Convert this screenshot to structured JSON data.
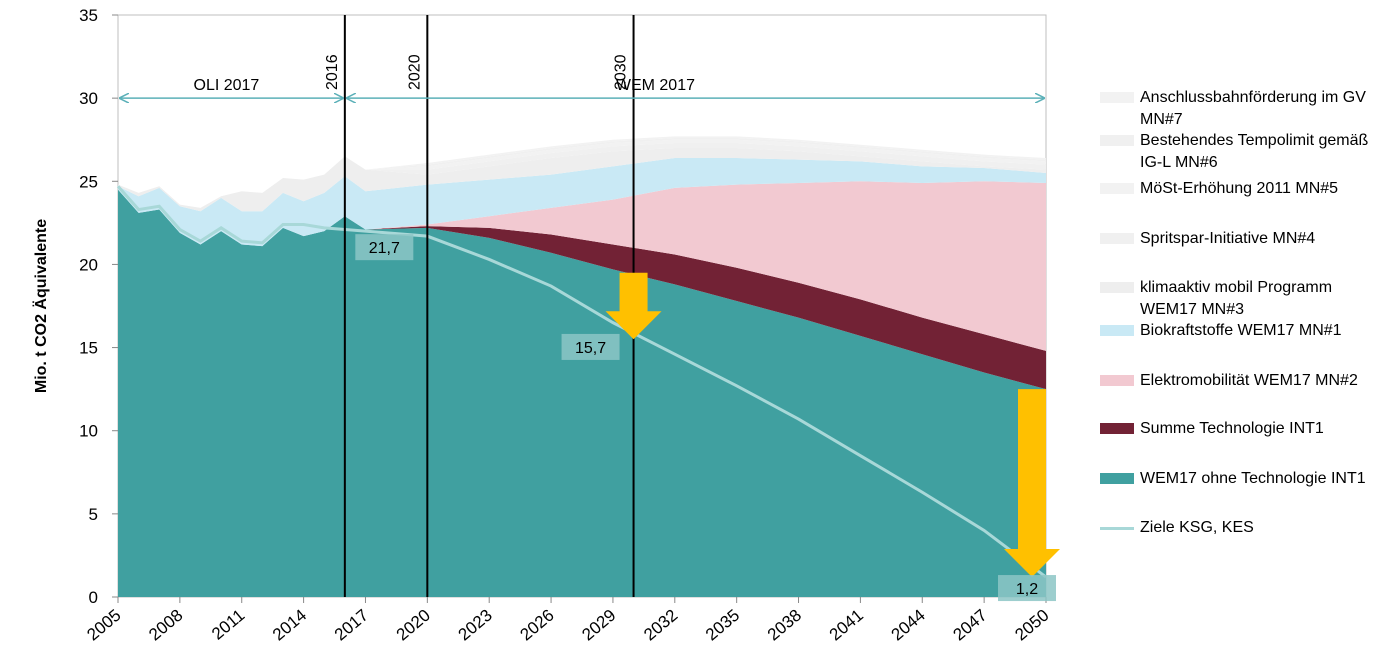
{
  "chart_data": {
    "type": "stacked_area",
    "y_label": "Mio. t CO2 Äquivalente",
    "x": [
      2005,
      2006,
      2007,
      2008,
      2009,
      2010,
      2011,
      2012,
      2013,
      2014,
      2015,
      2016,
      2017,
      2020,
      2023,
      2026,
      2029,
      2032,
      2035,
      2038,
      2041,
      2044,
      2047,
      2050
    ],
    "xlim": [
      2005,
      2050
    ],
    "xticks": [
      2005,
      2008,
      2011,
      2014,
      2017,
      2020,
      2023,
      2026,
      2029,
      2032,
      2035,
      2038,
      2041,
      2044,
      2047,
      2050
    ],
    "ylim": [
      0,
      35
    ],
    "yticks": [
      0,
      5,
      10,
      15,
      20,
      25,
      30,
      35
    ],
    "series": [
      {
        "name": "WEM17 ohne Technologie INT1",
        "color": "#40a0a0",
        "values": [
          24.5,
          23.1,
          23.3,
          21.9,
          21.2,
          22.0,
          21.2,
          21.1,
          22.2,
          21.7,
          22.0,
          22.9,
          22.1,
          22.2,
          21.6,
          20.7,
          19.7,
          18.8,
          17.8,
          16.8,
          15.7,
          14.6,
          13.5,
          12.5
        ]
      },
      {
        "name": "Summe Technologie INT1",
        "color": "#722235",
        "values": [
          0,
          0,
          0,
          0,
          0,
          0,
          0,
          0,
          0,
          0,
          0,
          0,
          0,
          0.1,
          0.6,
          1.1,
          1.5,
          1.8,
          2.0,
          2.1,
          2.2,
          2.2,
          2.3,
          2.3
        ]
      },
      {
        "name": "Elektromobilität WEM17 MN#2",
        "color": "#f2c9d1",
        "values": [
          0,
          0,
          0,
          0,
          0,
          0,
          0,
          0,
          0,
          0,
          0,
          0,
          0,
          0.1,
          0.7,
          1.6,
          2.7,
          4.0,
          5.0,
          6.0,
          7.1,
          8.1,
          9.2,
          10.1
        ]
      },
      {
        "name": "Biokraftstoffe WEM17 MN#1",
        "color": "#c9e9f5",
        "values": [
          0.2,
          1.0,
          1.3,
          1.6,
          2.0,
          2.0,
          2.0,
          2.1,
          2.1,
          2.1,
          2.3,
          2.4,
          2.3,
          2.4,
          2.2,
          2.0,
          2.0,
          1.8,
          1.6,
          1.4,
          1.2,
          1.0,
          0.8,
          0.6
        ]
      },
      {
        "name": "klimaaktiv mobil Programm WEM17 MN#3",
        "color": "#eeeeee",
        "values": [
          0.1,
          0.2,
          0.1,
          0.1,
          0.2,
          0.1,
          1.2,
          1.1,
          0.9,
          1.3,
          1.1,
          1.2,
          1.3,
          0.6,
          0.8,
          1.0,
          0.9,
          0.6,
          0.6,
          0.5,
          0.3,
          0.3,
          0.1,
          0.2
        ]
      },
      {
        "name": "Spritspar-Initiative MN#4",
        "color": "#f0f0f0",
        "values": [
          0,
          0,
          0,
          0,
          0,
          0,
          0,
          0,
          0,
          0,
          0,
          0,
          0,
          0.3,
          0.3,
          0.3,
          0.3,
          0.3,
          0.3,
          0.3,
          0.3,
          0.3,
          0.3,
          0.3
        ]
      },
      {
        "name": "MöSt-Erhöhung 2011 MN#5",
        "color": "#f2f2f2",
        "values": [
          0,
          0,
          0,
          0,
          0,
          0,
          0,
          0,
          0,
          0,
          0,
          0,
          0,
          0.2,
          0.2,
          0.2,
          0.2,
          0.2,
          0.2,
          0.2,
          0.2,
          0.2,
          0.2,
          0.2
        ]
      },
      {
        "name": "Bestehendes Tempolimit gemäß IG-L MN#6",
        "color": "#f0f0f0",
        "values": [
          0,
          0,
          0,
          0,
          0,
          0,
          0,
          0,
          0,
          0,
          0,
          0,
          0,
          0.1,
          0.1,
          0.1,
          0.1,
          0.1,
          0.1,
          0.1,
          0.1,
          0.1,
          0.1,
          0.1
        ]
      },
      {
        "name": "Anschlussbahnförderung im GV MN#7",
        "color": "#f2f2f2",
        "values": [
          0,
          0,
          0,
          0,
          0,
          0,
          0,
          0,
          0,
          0,
          0,
          0,
          0,
          0.1,
          0.1,
          0.1,
          0.1,
          0.1,
          0.1,
          0.1,
          0.1,
          0.1,
          0.1,
          0.1
        ]
      }
    ],
    "line": {
      "name": "Ziele KSG, KES",
      "color": "#a8d8d8",
      "values": [
        24.7,
        23.3,
        23.5,
        22.1,
        21.4,
        22.2,
        21.4,
        21.3,
        22.4,
        22.4,
        22.2,
        22.1,
        22.0,
        21.7,
        20.3,
        18.7,
        16.5,
        14.6,
        12.7,
        10.7,
        8.5,
        6.3,
        4.0,
        1.2
      ]
    },
    "vlines": [
      {
        "x": 2016,
        "label": "2016"
      },
      {
        "x": 2020,
        "label": "2020"
      },
      {
        "x": 2030,
        "label": "2030"
      }
    ],
    "ranges": [
      {
        "from": 2005,
        "to": 2016,
        "y": 30,
        "label": "OLI 2017"
      },
      {
        "from": 2016,
        "to": 2050,
        "y": 30,
        "label": "WEM 2017"
      }
    ],
    "annotations": [
      {
        "x": 2020,
        "y": 21.7,
        "label": "21,7"
      },
      {
        "x": 2030,
        "y": 15.7,
        "label": "15,7"
      },
      {
        "x": 2050,
        "y": 1.2,
        "label": "1,2"
      }
    ],
    "arrows": [
      {
        "x": 2030,
        "from": 19.5,
        "to": 15.5,
        "color": "#ffc000"
      },
      {
        "x": 2050,
        "from": 12.5,
        "to": 1.2,
        "color": "#ffc000"
      }
    ]
  }
}
